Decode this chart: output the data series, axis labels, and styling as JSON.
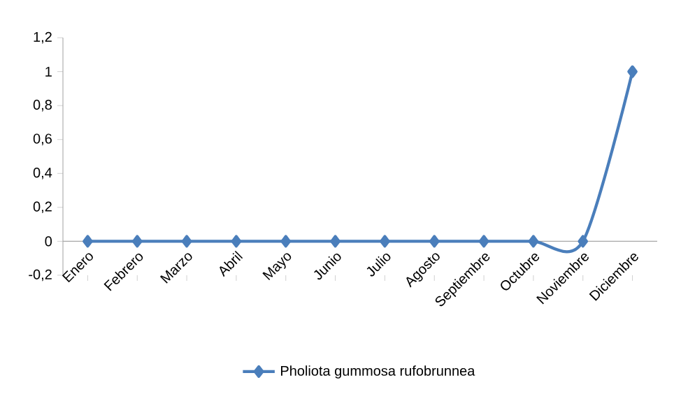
{
  "chart_data": {
    "type": "line",
    "categories": [
      "Enero",
      "Febrero",
      "Marzo",
      "Abril",
      "Mayo",
      "Junio",
      "Julio",
      "Agosto",
      "Septiembre",
      "Octubre",
      "Noviembre",
      "Diciembre"
    ],
    "series": [
      {
        "name": "Pholiota gummosa  rufobrunnea",
        "color": "#4a7ebb",
        "values": [
          0,
          0,
          0,
          0,
          0,
          0,
          0,
          0,
          0,
          0,
          0,
          1
        ]
      }
    ],
    "ylim": [
      -0.2,
      1.2
    ],
    "yticks": [
      {
        "value": -0.2,
        "label": "-0,2"
      },
      0,
      {
        "value": 0.2,
        "label": "0,2"
      },
      {
        "value": 0.4,
        "label": "0,4"
      },
      {
        "value": 0.6,
        "label": "0,6"
      },
      {
        "value": 0.8,
        "label": "0,8"
      },
      1,
      {
        "value": 1.2,
        "label": "1,2"
      }
    ],
    "marker": "diamond",
    "legend": "bottom"
  }
}
